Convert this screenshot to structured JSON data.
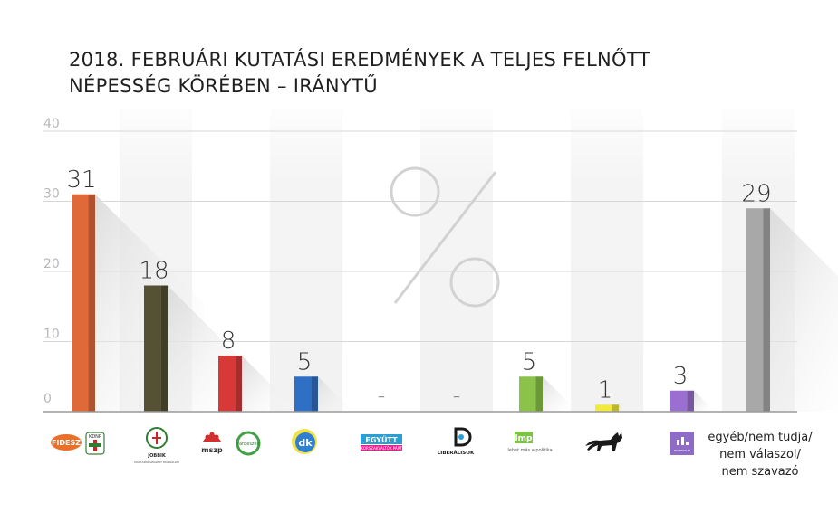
{
  "title_lines": [
    "2018. FEBRUÁRI KUTATÁSI EREDMÉNYEK A TELJES FELNŐTT",
    "NÉPESSÉG KÖRÉBEN – IRÁNYTŰ"
  ],
  "chart_data": {
    "type": "bar",
    "ylim": [
      0,
      40
    ],
    "yticks": [
      0,
      10,
      20,
      30,
      40
    ],
    "categories": [
      "Fidesz-KDNP",
      "Jobbik",
      "MSZP-Párbeszéd",
      "DK",
      "Együtt",
      "Liberálisok",
      "LMP",
      "MKKP",
      "Momentum",
      "egyéb/nem tudja/nem válaszol/nem szavazó"
    ],
    "values": [
      31,
      18,
      8,
      5,
      null,
      null,
      5,
      1,
      3,
      29
    ],
    "value_labels": [
      "31",
      "18",
      "8",
      "5",
      "–",
      "–",
      "5",
      "1",
      "3",
      "29"
    ],
    "colors": [
      "#e0693a",
      "#545135",
      "#d73838",
      "#2f6fc4",
      "#999999",
      "#999999",
      "#8bc34a",
      "#f2ea3a",
      "#9a6fd1",
      "#a8a8a8"
    ],
    "grid": true
  },
  "logos": {
    "fidesz": "FIDESZ",
    "kdnp": "KDNP",
    "jobbik": "JOBBIK",
    "jobbik_sub": "MAGYARORSZÁGÉRT MOZGALOM",
    "mszp": "mszp",
    "parbeszed": "Párbeszéd",
    "dk": "dk",
    "egyutt": "EGYÜTT",
    "egyutt_sub": "A KORSZAKVÁLTÓK PÁRTJA",
    "liberalisok": "LIBERÁLISOK",
    "lmp": "lmp",
    "lmp_sub": "lehet más a politika",
    "momentum": "MOMENTUM"
  },
  "other_label": [
    "egyéb/nem tudja/",
    "nem válaszol/",
    "nem szavazó"
  ]
}
